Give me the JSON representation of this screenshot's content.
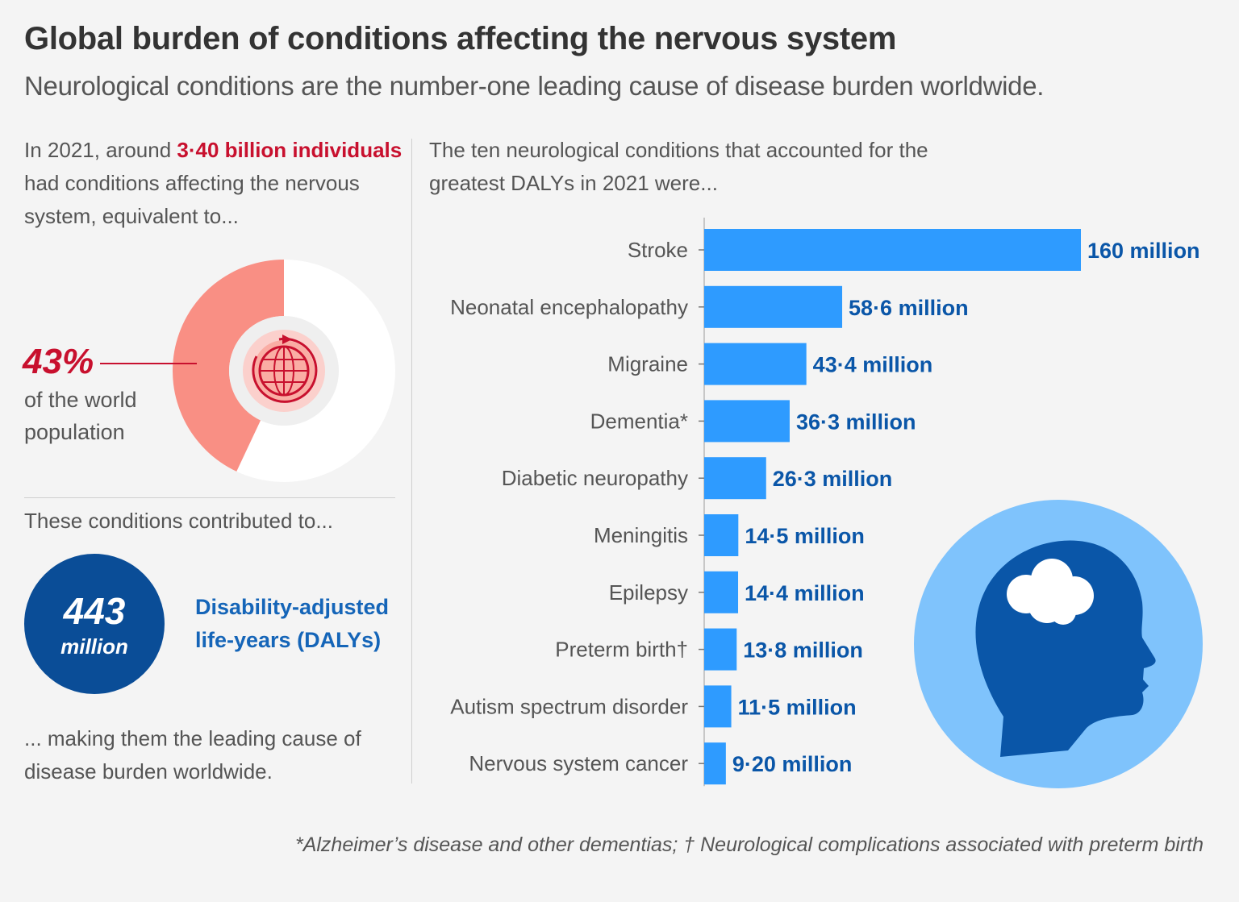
{
  "header": {
    "title": "Global burden of conditions affecting the nervous system",
    "subtitle": "Neurological conditions are the number-one leading cause of disease burden worldwide."
  },
  "left": {
    "intro_pre": "In 2021, around ",
    "intro_highlight": "3·40 billion individuals",
    "intro_post": " had conditions affecting the nervous system, equivalent to...",
    "percent": "43%",
    "percent_value": 43,
    "percent_label": "of the world population",
    "contrib_text": "These conditions contributed to...",
    "dalys_number": "443",
    "dalys_unit": "million",
    "dalys_label": "Disability-adjusted life-years (DALYs)",
    "outro": "... making them the leading cause of disease burden worldwide."
  },
  "right": {
    "intro": "The ten neurological conditions that accounted for the greatest DALYs in 2021 were..."
  },
  "footnote": "*Alzheimer’s disease and other dementias; † Neurological complications associated with preterm birth",
  "colors": {
    "red_accent": "#c8102e",
    "donut_filled": "#f98f84",
    "donut_empty": "#ffffff",
    "bar_blue": "#2e9bff",
    "label_blue": "#0a56a8",
    "navy": "#0a4d97",
    "light_blue": "#7fc3fc"
  },
  "icons": {
    "globe": "globe-icon",
    "head": "head-brain-icon"
  },
  "chart_data": {
    "type": "bar",
    "orientation": "horizontal",
    "categories": [
      "Stroke",
      "Neonatal encephalopathy",
      "Migraine",
      "Dementia*",
      "Diabetic neuropathy",
      "Meningitis",
      "Epilepsy",
      "Preterm birth†",
      "Autism spectrum disorder",
      "Nervous system cancer"
    ],
    "values": [
      160,
      58.6,
      43.4,
      36.3,
      26.3,
      14.5,
      14.4,
      13.8,
      11.5,
      9.2
    ],
    "value_labels": [
      "160 million",
      "58·6 million",
      "43·4 million",
      "36·3 million",
      "26·3 million",
      "14·5 million",
      "14·4 million",
      "13·8 million",
      "11·5 million",
      "9·20 million"
    ],
    "unit": "million DALYs",
    "xlim": [
      0,
      160
    ],
    "grid": false,
    "legend": "none"
  }
}
